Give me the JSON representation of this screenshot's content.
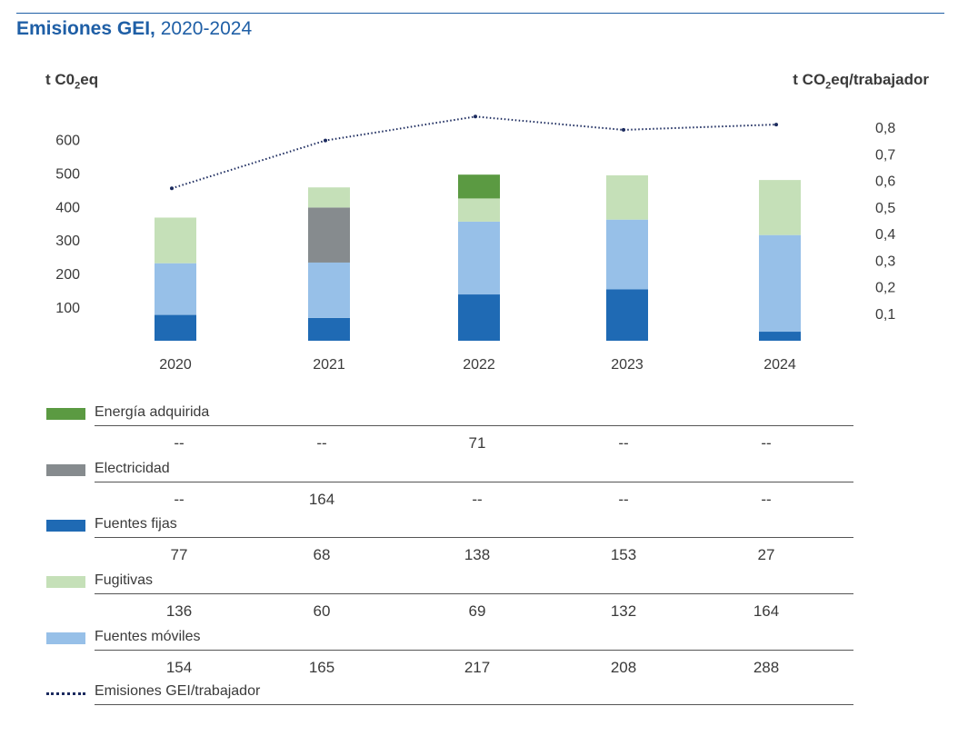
{
  "title": {
    "bold": "Emisiones GEI,",
    "rest": " 2020-2024"
  },
  "y_left_title": {
    "pre": "t C0",
    "sub": "2",
    "post": "eq"
  },
  "y_right_title": {
    "pre": "t CO",
    "sub": "2",
    "post": "eq/trabajador"
  },
  "chart_data": {
    "type": "bar",
    "stacked": true,
    "categories": [
      "2020",
      "2021",
      "2022",
      "2023",
      "2024"
    ],
    "ylim": [
      0,
      600
    ],
    "y_ticks": [
      "100",
      "200",
      "300",
      "400",
      "500",
      "600"
    ],
    "y2lim": [
      0,
      0.8
    ],
    "y2_ticks": [
      "0,1",
      "0,2",
      "0,3",
      "0,4",
      "0,5",
      "0,6",
      "0,7",
      "0,8"
    ],
    "series": [
      {
        "name": "Fuentes fijas",
        "color": "#1f6ab4",
        "values": [
          77,
          68,
          138,
          153,
          27
        ],
        "labels": [
          "77",
          "68",
          "138",
          "153",
          "27"
        ]
      },
      {
        "name": "Fuentes móviles",
        "color": "#97c0e8",
        "values": [
          154,
          165,
          217,
          208,
          288
        ],
        "labels": [
          "154",
          "165",
          "217",
          "208",
          "288"
        ]
      },
      {
        "name": "Electricidad",
        "color": "#868b8e",
        "values": [
          0,
          164,
          0,
          0,
          0
        ],
        "labels": [
          "--",
          "164",
          "--",
          "--",
          "--"
        ]
      },
      {
        "name": "Fugitivas",
        "color": "#c5e0b8",
        "values": [
          136,
          60,
          69,
          132,
          164
        ],
        "labels": [
          "136",
          "60",
          "69",
          "132",
          "164"
        ]
      },
      {
        "name": "Energía adquirida",
        "color": "#5b9a42",
        "values": [
          0,
          0,
          71,
          0,
          0
        ],
        "labels": [
          "--",
          "--",
          "71",
          "--",
          "--"
        ]
      }
    ],
    "line_series": {
      "name": "Emisiones GEI/trabajador",
      "color": "#1b2a5e",
      "axis": "right",
      "values": [
        0.57,
        0.75,
        0.84,
        0.79,
        0.81
      ]
    },
    "legend_order": [
      "Energía adquirida",
      "Electricidad",
      "Fuentes fijas",
      "Fugitivas",
      "Fuentes móviles",
      "Emisiones GEI/trabajador"
    ]
  }
}
